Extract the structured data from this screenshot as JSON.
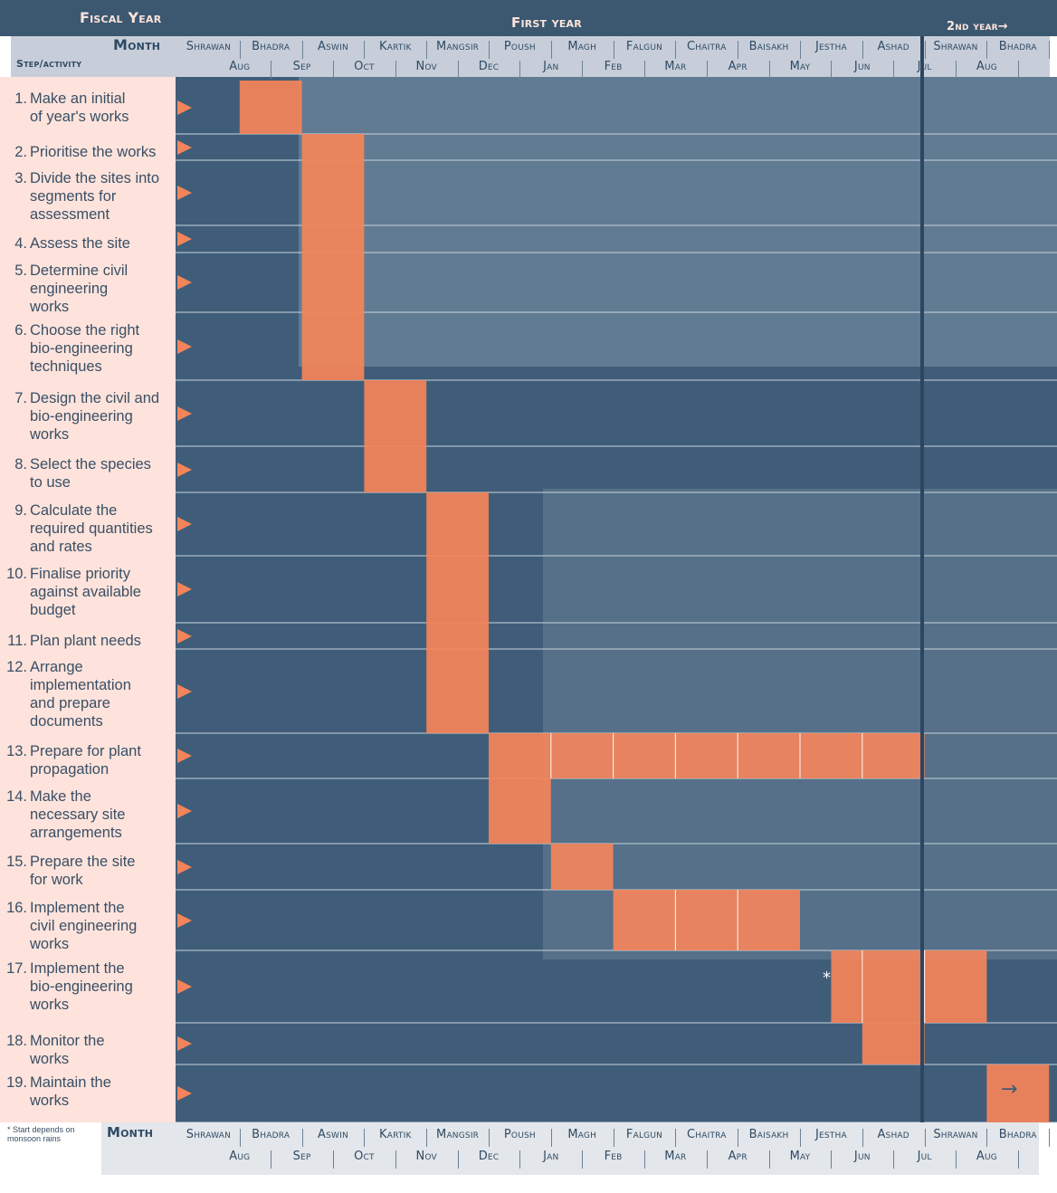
{
  "chart_data": {
    "type": "gantt",
    "fiscal_year_label": "Fiscal Year",
    "first_year_label": "First year",
    "second_year_label": "2nd year→",
    "month_label": "Month",
    "step_label": "Step/activity",
    "months_nepali": [
      "Shrawan",
      "Bhadra",
      "Aswin",
      "Kartik",
      "Mangsir",
      "Poush",
      "Magh",
      "Falgun",
      "Chaitra",
      "Baisakh",
      "Jestha",
      "Ashad",
      "Shrawan",
      "Bhadra"
    ],
    "months_gregorian": [
      "Aug",
      "Sep",
      "Oct",
      "Nov",
      "Dec",
      "Jan",
      "Feb",
      "Mar",
      "Apr",
      "May",
      "Jun",
      "Jul",
      "Aug"
    ],
    "steps": [
      {
        "num": "1.",
        "label": "Make an initial\nof year's works",
        "start": 1,
        "end": 2
      },
      {
        "num": "2.",
        "label": "Prioritise the works",
        "start": 2,
        "end": 3
      },
      {
        "num": "3.",
        "label": "Divide the sites into\nsegments for\nassessment",
        "start": 2,
        "end": 3
      },
      {
        "num": "4.",
        "label": "Assess the site",
        "start": 2,
        "end": 3
      },
      {
        "num": "5.",
        "label": "Determine civil\nengineering\nworks",
        "start": 2,
        "end": 3
      },
      {
        "num": "6.",
        "label": "Choose the right\nbio-engineering\ntechniques",
        "start": 2,
        "end": 3
      },
      {
        "num": "7.",
        "label": "Design the civil and\nbio-engineering\nworks",
        "start": 3,
        "end": 4
      },
      {
        "num": "8.",
        "label": "Select the species\nto use",
        "start": 3,
        "end": 4
      },
      {
        "num": "9.",
        "label": "Calculate the\nrequired quantities\nand rates",
        "start": 4,
        "end": 5
      },
      {
        "num": "10.",
        "label": "Finalise priority\nagainst available\nbudget",
        "start": 4,
        "end": 5
      },
      {
        "num": "11.",
        "label": "Plan plant needs",
        "start": 4,
        "end": 5
      },
      {
        "num": "12.",
        "label": "Arrange\nimplementation\nand prepare\ndocuments",
        "start": 4,
        "end": 5
      },
      {
        "num": "13.",
        "label": "Prepare for plant\npropagation",
        "start": 5,
        "end": 12
      },
      {
        "num": "14.",
        "label": "Make the\nnecessary site\narrangements",
        "start": 5,
        "end": 6
      },
      {
        "num": "15.",
        "label": "Prepare the site\nfor work",
        "start": 6,
        "end": 7
      },
      {
        "num": "16.",
        "label": "Implement the\ncivil engineering\nworks",
        "start": 7,
        "end": 10
      },
      {
        "num": "17.",
        "label": "Implement the\nbio-engineering\nworks",
        "start": 10.5,
        "end": 13
      },
      {
        "num": "18.",
        "label": "Monitor the\nworks",
        "start": 11,
        "end": 12
      },
      {
        "num": "19.",
        "label": "Maintain the\nworks",
        "start": 13,
        "end": 14
      }
    ],
    "footnote": "* Start depends on monsoon rains",
    "continues_arrow": "→",
    "start_marker": "*"
  },
  "colors": {
    "bar": "#f4845a",
    "bg_photo": "#3f5d78",
    "header": "#c7ced9",
    "header_dark": "#3b5870",
    "left_panel": "#fde3db",
    "text": "#2f4a64"
  }
}
